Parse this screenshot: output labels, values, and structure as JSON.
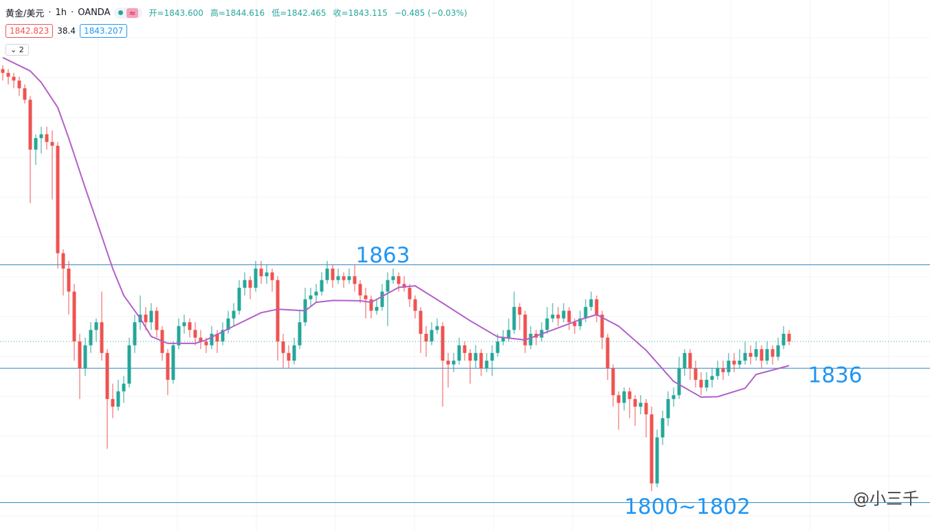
{
  "header": {
    "symbol": "黄金/美元",
    "interval": "1h",
    "source": "OANDA",
    "badge": "≈",
    "ohlc": [
      "开=1843.600",
      "高=1844.616",
      "低=1842.465",
      "收=1843.115",
      "−0.485 (−0.03%)"
    ],
    "quotes": [
      "1842.823",
      "38.4",
      "1843.207"
    ],
    "layers": "2"
  },
  "watermark": "@小三千",
  "chart_data": {
    "type": "candlestick",
    "ylim": [
      1793.6,
      1932
    ],
    "up_color": "#26a69a",
    "down_color": "#ef5350",
    "ma_color": "#b25fc8",
    "level_color": "#2a82c0",
    "levels": [
      1863,
      1836,
      {
        "value": 1801,
        "label": "1800~1802"
      }
    ],
    "ohlc": [
      [
        1914,
        1915,
        1911,
        1913
      ],
      [
        1913,
        1914,
        1910,
        1912
      ],
      [
        1912,
        1913,
        1909,
        1911
      ],
      [
        1911,
        1912,
        1907,
        1909
      ],
      [
        1909,
        1910,
        1905,
        1906
      ],
      [
        1906,
        1907,
        1879,
        1893
      ],
      [
        1893,
        1897,
        1889,
        1896
      ],
      [
        1896,
        1899,
        1892,
        1897
      ],
      [
        1897,
        1899,
        1893,
        1895
      ],
      [
        1895,
        1898,
        1880,
        1894
      ],
      [
        1894,
        1895,
        1862,
        1866
      ],
      [
        1866,
        1867,
        1855,
        1862
      ],
      [
        1862,
        1864,
        1850,
        1856
      ],
      [
        1856,
        1858,
        1838,
        1843
      ],
      [
        1843,
        1845,
        1828,
        1836
      ],
      [
        1836,
        1844,
        1834,
        1842
      ],
      [
        1842,
        1848,
        1840,
        1846
      ],
      [
        1846,
        1849,
        1843,
        1848
      ],
      [
        1848,
        1856,
        1838,
        1840
      ],
      [
        1840,
        1841,
        1815,
        1828
      ],
      [
        1828,
        1832,
        1823,
        1826
      ],
      [
        1826,
        1833,
        1825,
        1830
      ],
      [
        1830,
        1834,
        1827,
        1832
      ],
      [
        1832,
        1844,
        1831,
        1842
      ],
      [
        1842,
        1850,
        1840,
        1848
      ],
      [
        1848,
        1855,
        1846,
        1850
      ],
      [
        1850,
        1852,
        1846,
        1848
      ],
      [
        1848,
        1853,
        1846,
        1851
      ],
      [
        1851,
        1852,
        1844,
        1846
      ],
      [
        1846,
        1847,
        1838,
        1840
      ],
      [
        1840,
        1841,
        1829,
        1833
      ],
      [
        1833,
        1843,
        1832,
        1842
      ],
      [
        1842,
        1849,
        1841,
        1847
      ],
      [
        1847,
        1850,
        1845,
        1848
      ],
      [
        1848,
        1849,
        1844,
        1846
      ],
      [
        1846,
        1848,
        1842,
        1844
      ],
      [
        1844,
        1846,
        1841,
        1843
      ],
      [
        1843,
        1844,
        1840,
        1842
      ],
      [
        1842,
        1847,
        1841,
        1845
      ],
      [
        1845,
        1846,
        1840,
        1843
      ],
      [
        1843,
        1848,
        1842,
        1846
      ],
      [
        1846,
        1851,
        1845,
        1849
      ],
      [
        1849,
        1853,
        1847,
        1851
      ],
      [
        1851,
        1859,
        1850,
        1857
      ],
      [
        1857,
        1861,
        1855,
        1859
      ],
      [
        1859,
        1860,
        1854,
        1857
      ],
      [
        1857,
        1864,
        1856,
        1862
      ],
      [
        1862,
        1864,
        1858,
        1860
      ],
      [
        1860,
        1863,
        1858,
        1861
      ],
      [
        1861,
        1862,
        1856,
        1859
      ],
      [
        1859,
        1860,
        1838,
        1843
      ],
      [
        1843,
        1845,
        1836,
        1840
      ],
      [
        1840,
        1842,
        1836,
        1838
      ],
      [
        1838,
        1844,
        1837,
        1842
      ],
      [
        1842,
        1851,
        1841,
        1848
      ],
      [
        1848,
        1857,
        1847,
        1854
      ],
      [
        1854,
        1857,
        1852,
        1855
      ],
      [
        1855,
        1858,
        1853,
        1856
      ],
      [
        1856,
        1861,
        1855,
        1859
      ],
      [
        1859,
        1864,
        1858,
        1862
      ],
      [
        1862,
        1863,
        1857,
        1859
      ],
      [
        1859,
        1862,
        1858,
        1860
      ],
      [
        1860,
        1861,
        1857,
        1859
      ],
      [
        1859,
        1862,
        1858,
        1860
      ],
      [
        1860,
        1863,
        1856,
        1858
      ],
      [
        1858,
        1859,
        1853,
        1855
      ],
      [
        1855,
        1857,
        1849,
        1854
      ],
      [
        1854,
        1855,
        1849,
        1851
      ],
      [
        1851,
        1854,
        1850,
        1852
      ],
      [
        1852,
        1858,
        1851,
        1856
      ],
      [
        1856,
        1861,
        1847,
        1859
      ],
      [
        1859,
        1862,
        1858,
        1860
      ],
      [
        1860,
        1861,
        1856,
        1858
      ],
      [
        1858,
        1860,
        1856,
        1857
      ],
      [
        1857,
        1858,
        1852,
        1854
      ],
      [
        1854,
        1855,
        1849,
        1851
      ],
      [
        1851,
        1852,
        1840,
        1845
      ],
      [
        1845,
        1847,
        1839,
        1843
      ],
      [
        1843,
        1848,
        1842,
        1846
      ],
      [
        1846,
        1849,
        1845,
        1847
      ],
      [
        1847,
        1848,
        1826,
        1838
      ],
      [
        1838,
        1840,
        1831,
        1837
      ],
      [
        1837,
        1840,
        1835,
        1838
      ],
      [
        1838,
        1844,
        1837,
        1842
      ],
      [
        1842,
        1843,
        1838,
        1840
      ],
      [
        1840,
        1841,
        1832,
        1838
      ],
      [
        1838,
        1842,
        1836,
        1840
      ],
      [
        1840,
        1841,
        1834,
        1836
      ],
      [
        1836,
        1840,
        1835,
        1838
      ],
      [
        1838,
        1842,
        1834,
        1840
      ],
      [
        1840,
        1845,
        1839,
        1843
      ],
      [
        1843,
        1846,
        1842,
        1844
      ],
      [
        1844,
        1849,
        1843,
        1846
      ],
      [
        1846,
        1856,
        1845,
        1852
      ],
      [
        1852,
        1853,
        1846,
        1850
      ],
      [
        1850,
        1851,
        1840,
        1842
      ],
      [
        1842,
        1847,
        1841,
        1845
      ],
      [
        1845,
        1846,
        1842,
        1844
      ],
      [
        1844,
        1848,
        1843,
        1846
      ],
      [
        1846,
        1852,
        1845,
        1849
      ],
      [
        1849,
        1853,
        1848,
        1850
      ],
      [
        1850,
        1852,
        1847,
        1849
      ],
      [
        1849,
        1853,
        1848,
        1851
      ],
      [
        1851,
        1852,
        1846,
        1848
      ],
      [
        1848,
        1849,
        1845,
        1847
      ],
      [
        1847,
        1851,
        1846,
        1849
      ],
      [
        1849,
        1854,
        1848,
        1852
      ],
      [
        1852,
        1856,
        1851,
        1854
      ],
      [
        1854,
        1855,
        1848,
        1850
      ],
      [
        1850,
        1851,
        1841,
        1844
      ],
      [
        1844,
        1845,
        1833,
        1836
      ],
      [
        1836,
        1837,
        1826,
        1829
      ],
      [
        1829,
        1830,
        1820,
        1827
      ],
      [
        1827,
        1831,
        1825,
        1830
      ],
      [
        1830,
        1831,
        1823,
        1828
      ],
      [
        1828,
        1829,
        1821,
        1826
      ],
      [
        1826,
        1829,
        1824,
        1827
      ],
      [
        1827,
        1828,
        1818,
        1824
      ],
      [
        1824,
        1826,
        1804,
        1806
      ],
      [
        1806,
        1820,
        1805,
        1818
      ],
      [
        1818,
        1825,
        1816,
        1823
      ],
      [
        1823,
        1830,
        1821,
        1828
      ],
      [
        1828,
        1831,
        1826,
        1829
      ],
      [
        1829,
        1839,
        1828,
        1836
      ],
      [
        1836,
        1841,
        1834,
        1840
      ],
      [
        1840,
        1841,
        1833,
        1836
      ],
      [
        1836,
        1838,
        1831,
        1833
      ],
      [
        1833,
        1835,
        1829,
        1831
      ],
      [
        1831,
        1835,
        1830,
        1833
      ],
      [
        1833,
        1836,
        1831,
        1834
      ],
      [
        1834,
        1838,
        1833,
        1836
      ],
      [
        1836,
        1838,
        1833,
        1835
      ],
      [
        1835,
        1840,
        1834,
        1838
      ],
      [
        1838,
        1840,
        1835,
        1837
      ],
      [
        1837,
        1841,
        1836,
        1838
      ],
      [
        1838,
        1843,
        1837,
        1840
      ],
      [
        1840,
        1842,
        1837,
        1839
      ],
      [
        1839,
        1843,
        1838,
        1841
      ],
      [
        1841,
        1842,
        1836,
        1838
      ],
      [
        1838,
        1843,
        1837,
        1841
      ],
      [
        1841,
        1842,
        1837,
        1839
      ],
      [
        1839,
        1844,
        1838,
        1842
      ],
      [
        1842,
        1847,
        1841,
        1845
      ],
      [
        1845,
        1846,
        1842,
        1843
      ]
    ],
    "ma_index": [
      0,
      5,
      7,
      10,
      12,
      15,
      17,
      20,
      22,
      25,
      27,
      30,
      35,
      37,
      42,
      47,
      50,
      55,
      57,
      60,
      65,
      67,
      72,
      75,
      80,
      85,
      90,
      95,
      100,
      105,
      108,
      112,
      117,
      122,
      127,
      130,
      135,
      137,
      143
    ],
    "ma_values": [
      1917,
      1913.5,
      1910.5,
      1904,
      1896,
      1883,
      1874.7,
      1862,
      1855,
      1849,
      1844.3,
      1842.5,
      1842.5,
      1843.4,
      1847,
      1850.5,
      1851.4,
      1851,
      1853.2,
      1853.7,
      1853.6,
      1853.2,
      1857.1,
      1857.5,
      1853,
      1848.4,
      1844.2,
      1843.4,
      1846,
      1848.7,
      1850,
      1847,
      1840.7,
      1832.6,
      1828.5,
      1828.6,
      1830.8,
      1834.4,
      1836.7
    ]
  }
}
